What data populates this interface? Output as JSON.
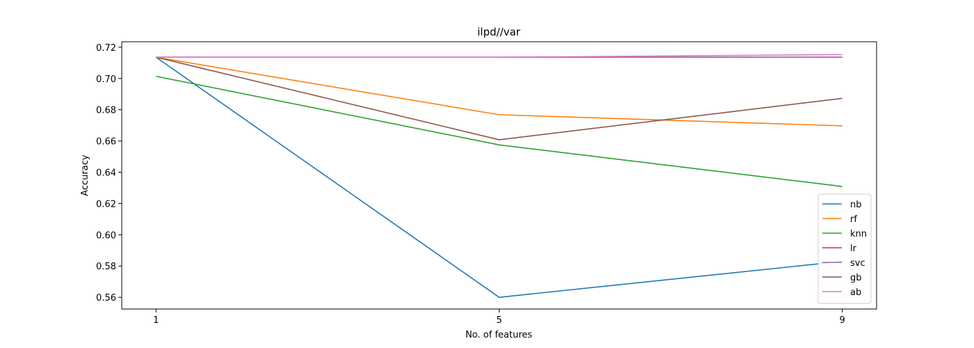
{
  "chart_data": {
    "type": "line",
    "title": "ilpd//var",
    "xlabel": "No. of features",
    "ylabel": "Accuracy",
    "x": [
      1,
      5,
      9
    ],
    "xticks": [
      "1",
      "5",
      "9"
    ],
    "yticks": [
      "0.56",
      "0.58",
      "0.60",
      "0.62",
      "0.64",
      "0.66",
      "0.68",
      "0.70",
      "0.72"
    ],
    "xlim": [
      0.6,
      9.4
    ],
    "ylim": [
      0.5525,
      0.7235
    ],
    "grid": false,
    "legend_position": "lower-right",
    "series": [
      {
        "name": "nb",
        "color": "#1f77b4",
        "values": [
          0.7136,
          0.56,
          0.583
        ]
      },
      {
        "name": "rf",
        "color": "#ff7f0e",
        "values": [
          0.7136,
          0.6768,
          0.6697
        ]
      },
      {
        "name": "knn",
        "color": "#2ca02c",
        "values": [
          0.7014,
          0.6575,
          0.6309
        ]
      },
      {
        "name": "lr",
        "color": "#d62728",
        "values": [
          0.7136,
          0.7136,
          0.7136
        ]
      },
      {
        "name": "svc",
        "color": "#9467bd",
        "values": [
          0.7136,
          0.7136,
          0.7136
        ]
      },
      {
        "name": "gb",
        "color": "#8c564b",
        "values": [
          0.7136,
          0.6608,
          0.6873
        ]
      },
      {
        "name": "ab",
        "color": "#e377c2",
        "values": [
          0.7136,
          0.7136,
          0.7153
        ]
      }
    ]
  }
}
